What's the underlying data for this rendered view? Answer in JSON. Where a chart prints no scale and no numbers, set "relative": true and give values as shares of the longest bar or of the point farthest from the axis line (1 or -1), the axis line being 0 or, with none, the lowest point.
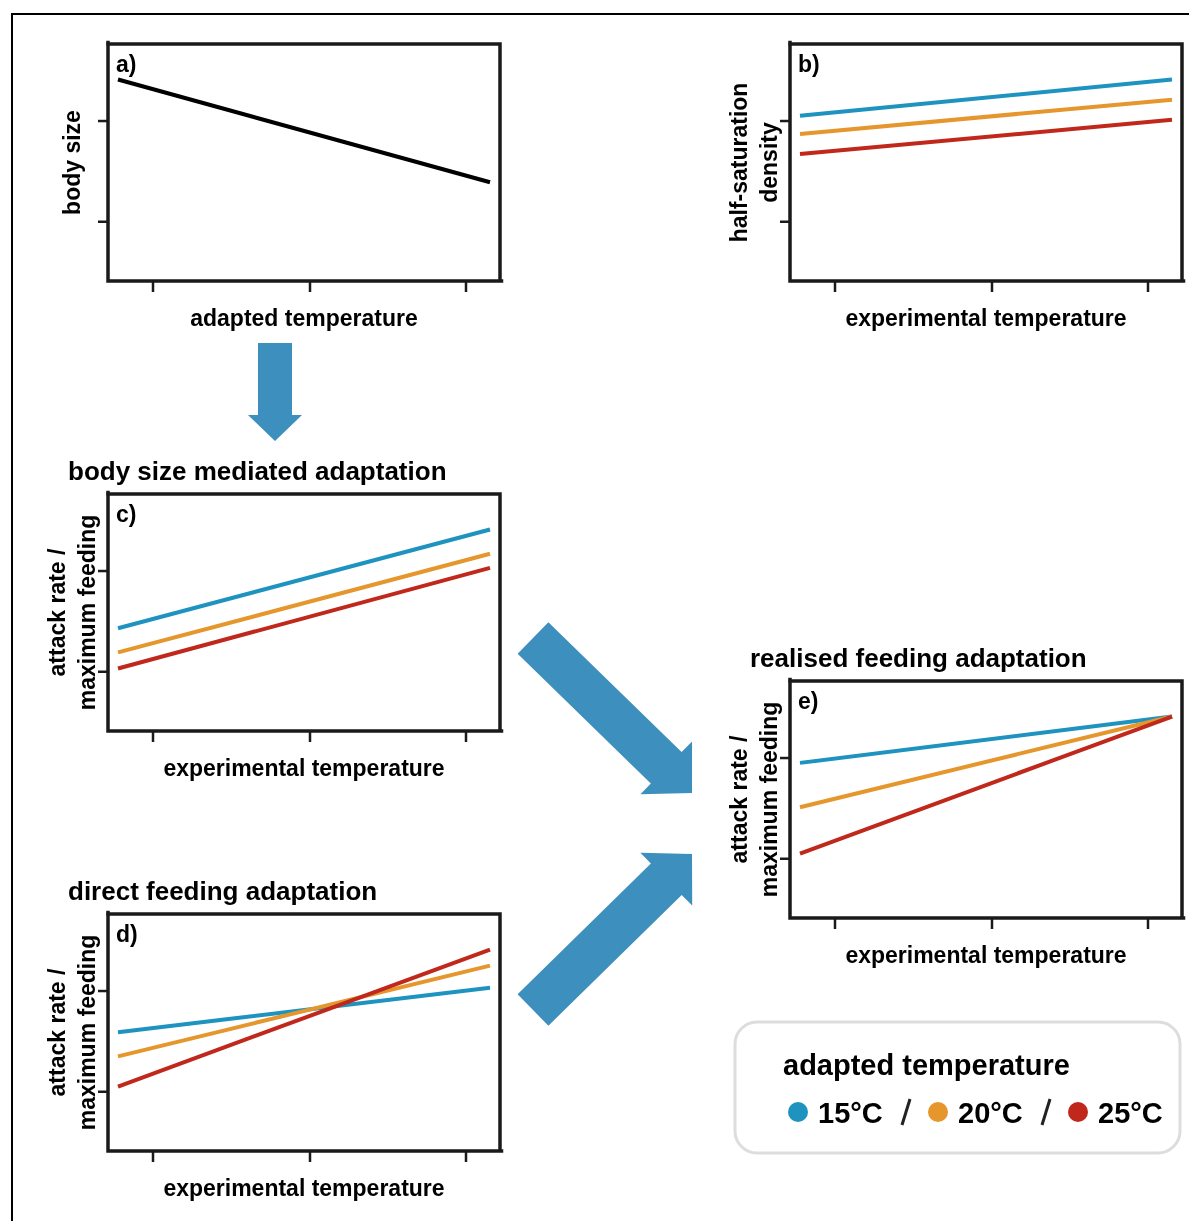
{
  "chart_data": [
    {
      "type": "line",
      "relative": true,
      "categories": [
        null,
        null
      ],
      "xlabel": "adapted temperature",
      "ylabel": "body size",
      "annotations": [
        "a)"
      ],
      "series": [
        {
          "color": "#000000",
          "values": [
            1,
            0.49
          ]
        }
      ]
    },
    {
      "type": "line",
      "relative": true,
      "categories": [
        null,
        null
      ],
      "xlabel": "experimental temperature",
      "ylabel": "half-saturation density",
      "annotations": [
        "b)"
      ],
      "series": [
        {
          "color": "#1f93bf",
          "values": [
            0.82,
            1
          ]
        },
        {
          "color": "#e5962c",
          "values": [
            0.73,
            0.9
          ]
        },
        {
          "color": "#c0281c",
          "values": [
            0.63,
            0.8
          ]
        }
      ]
    },
    {
      "type": "line",
      "relative": true,
      "title": "body size mediated adaptation",
      "categories": [
        null,
        null
      ],
      "xlabel": "experimental temperature",
      "ylabel": "attack rate / maximum feeding",
      "annotations": [
        "c)"
      ],
      "series": [
        {
          "color": "#1f93bf",
          "values": [
            0.51,
            1
          ]
        },
        {
          "color": "#e5962c",
          "values": [
            0.39,
            0.88
          ]
        },
        {
          "color": "#c0281c",
          "values": [
            0.31,
            0.81
          ]
        }
      ]
    },
    {
      "type": "line",
      "relative": true,
      "title": "direct feeding adaptation",
      "categories": [
        null,
        null
      ],
      "xlabel": "experimental temperature",
      "ylabel": "attack rate / maximum feeding",
      "annotations": [
        "d)"
      ],
      "series": [
        {
          "color": "#1f93bf",
          "values": [
            0.59,
            0.81
          ]
        },
        {
          "color": "#e5962c",
          "values": [
            0.47,
            0.92
          ]
        },
        {
          "color": "#c0281c",
          "values": [
            0.32,
            1
          ]
        }
      ]
    },
    {
      "type": "line",
      "relative": true,
      "title": "realised feeding adaptation",
      "categories": [
        null,
        null
      ],
      "xlabel": "experimental temperature",
      "ylabel": "attack rate / maximum feeding",
      "annotations": [
        "e)"
      ],
      "legend": "bottom",
      "legend_title": "adapted temperature",
      "series": [
        {
          "name": "15°C",
          "color": "#1f93bf",
          "values": [
            0.77,
            1
          ]
        },
        {
          "name": "20°C",
          "color": "#e5962c",
          "values": [
            0.55,
            1
          ]
        },
        {
          "name": "25°C",
          "color": "#c0281c",
          "values": [
            0.32,
            1
          ]
        }
      ]
    }
  ]
}
